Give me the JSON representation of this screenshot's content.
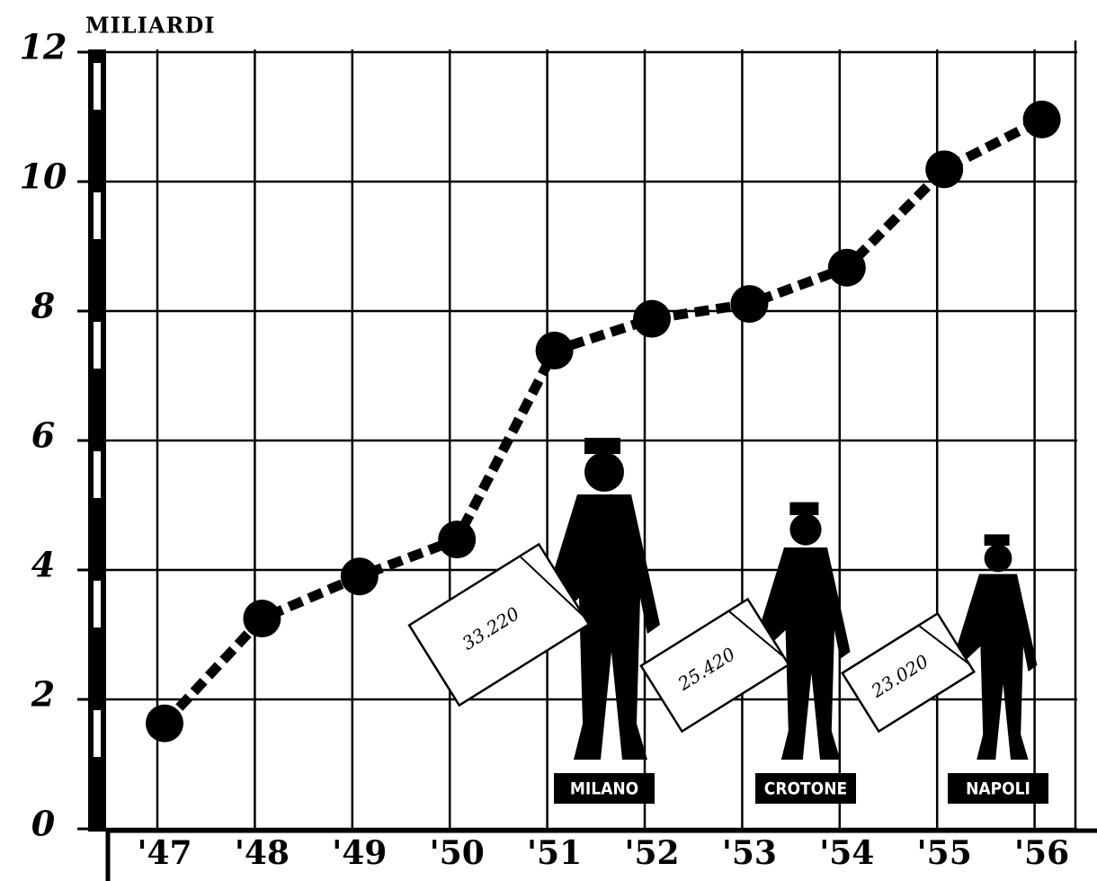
{
  "chart_data": {
    "type": "line",
    "y_label": "MILIARDI",
    "categories": [
      "'47",
      "'48",
      "'49",
      "'50",
      "'51",
      "'52",
      "'53",
      "'54",
      "'55",
      "'56"
    ],
    "values": [
      1.63,
      3.25,
      3.9,
      4.47,
      7.39,
      7.88,
      8.11,
      8.67,
      10.19,
      10.96
    ],
    "color": "#000000",
    "ylim": [
      0,
      12
    ],
    "yticks": [
      0,
      2,
      4,
      6,
      8,
      10,
      12
    ],
    "grid": true,
    "annotations": [
      {
        "label": "MILANO",
        "amount": "33.220"
      },
      {
        "label": "CROTONE",
        "amount": "25.420"
      },
      {
        "label": "NAPOLI",
        "amount": "23.020"
      }
    ]
  }
}
